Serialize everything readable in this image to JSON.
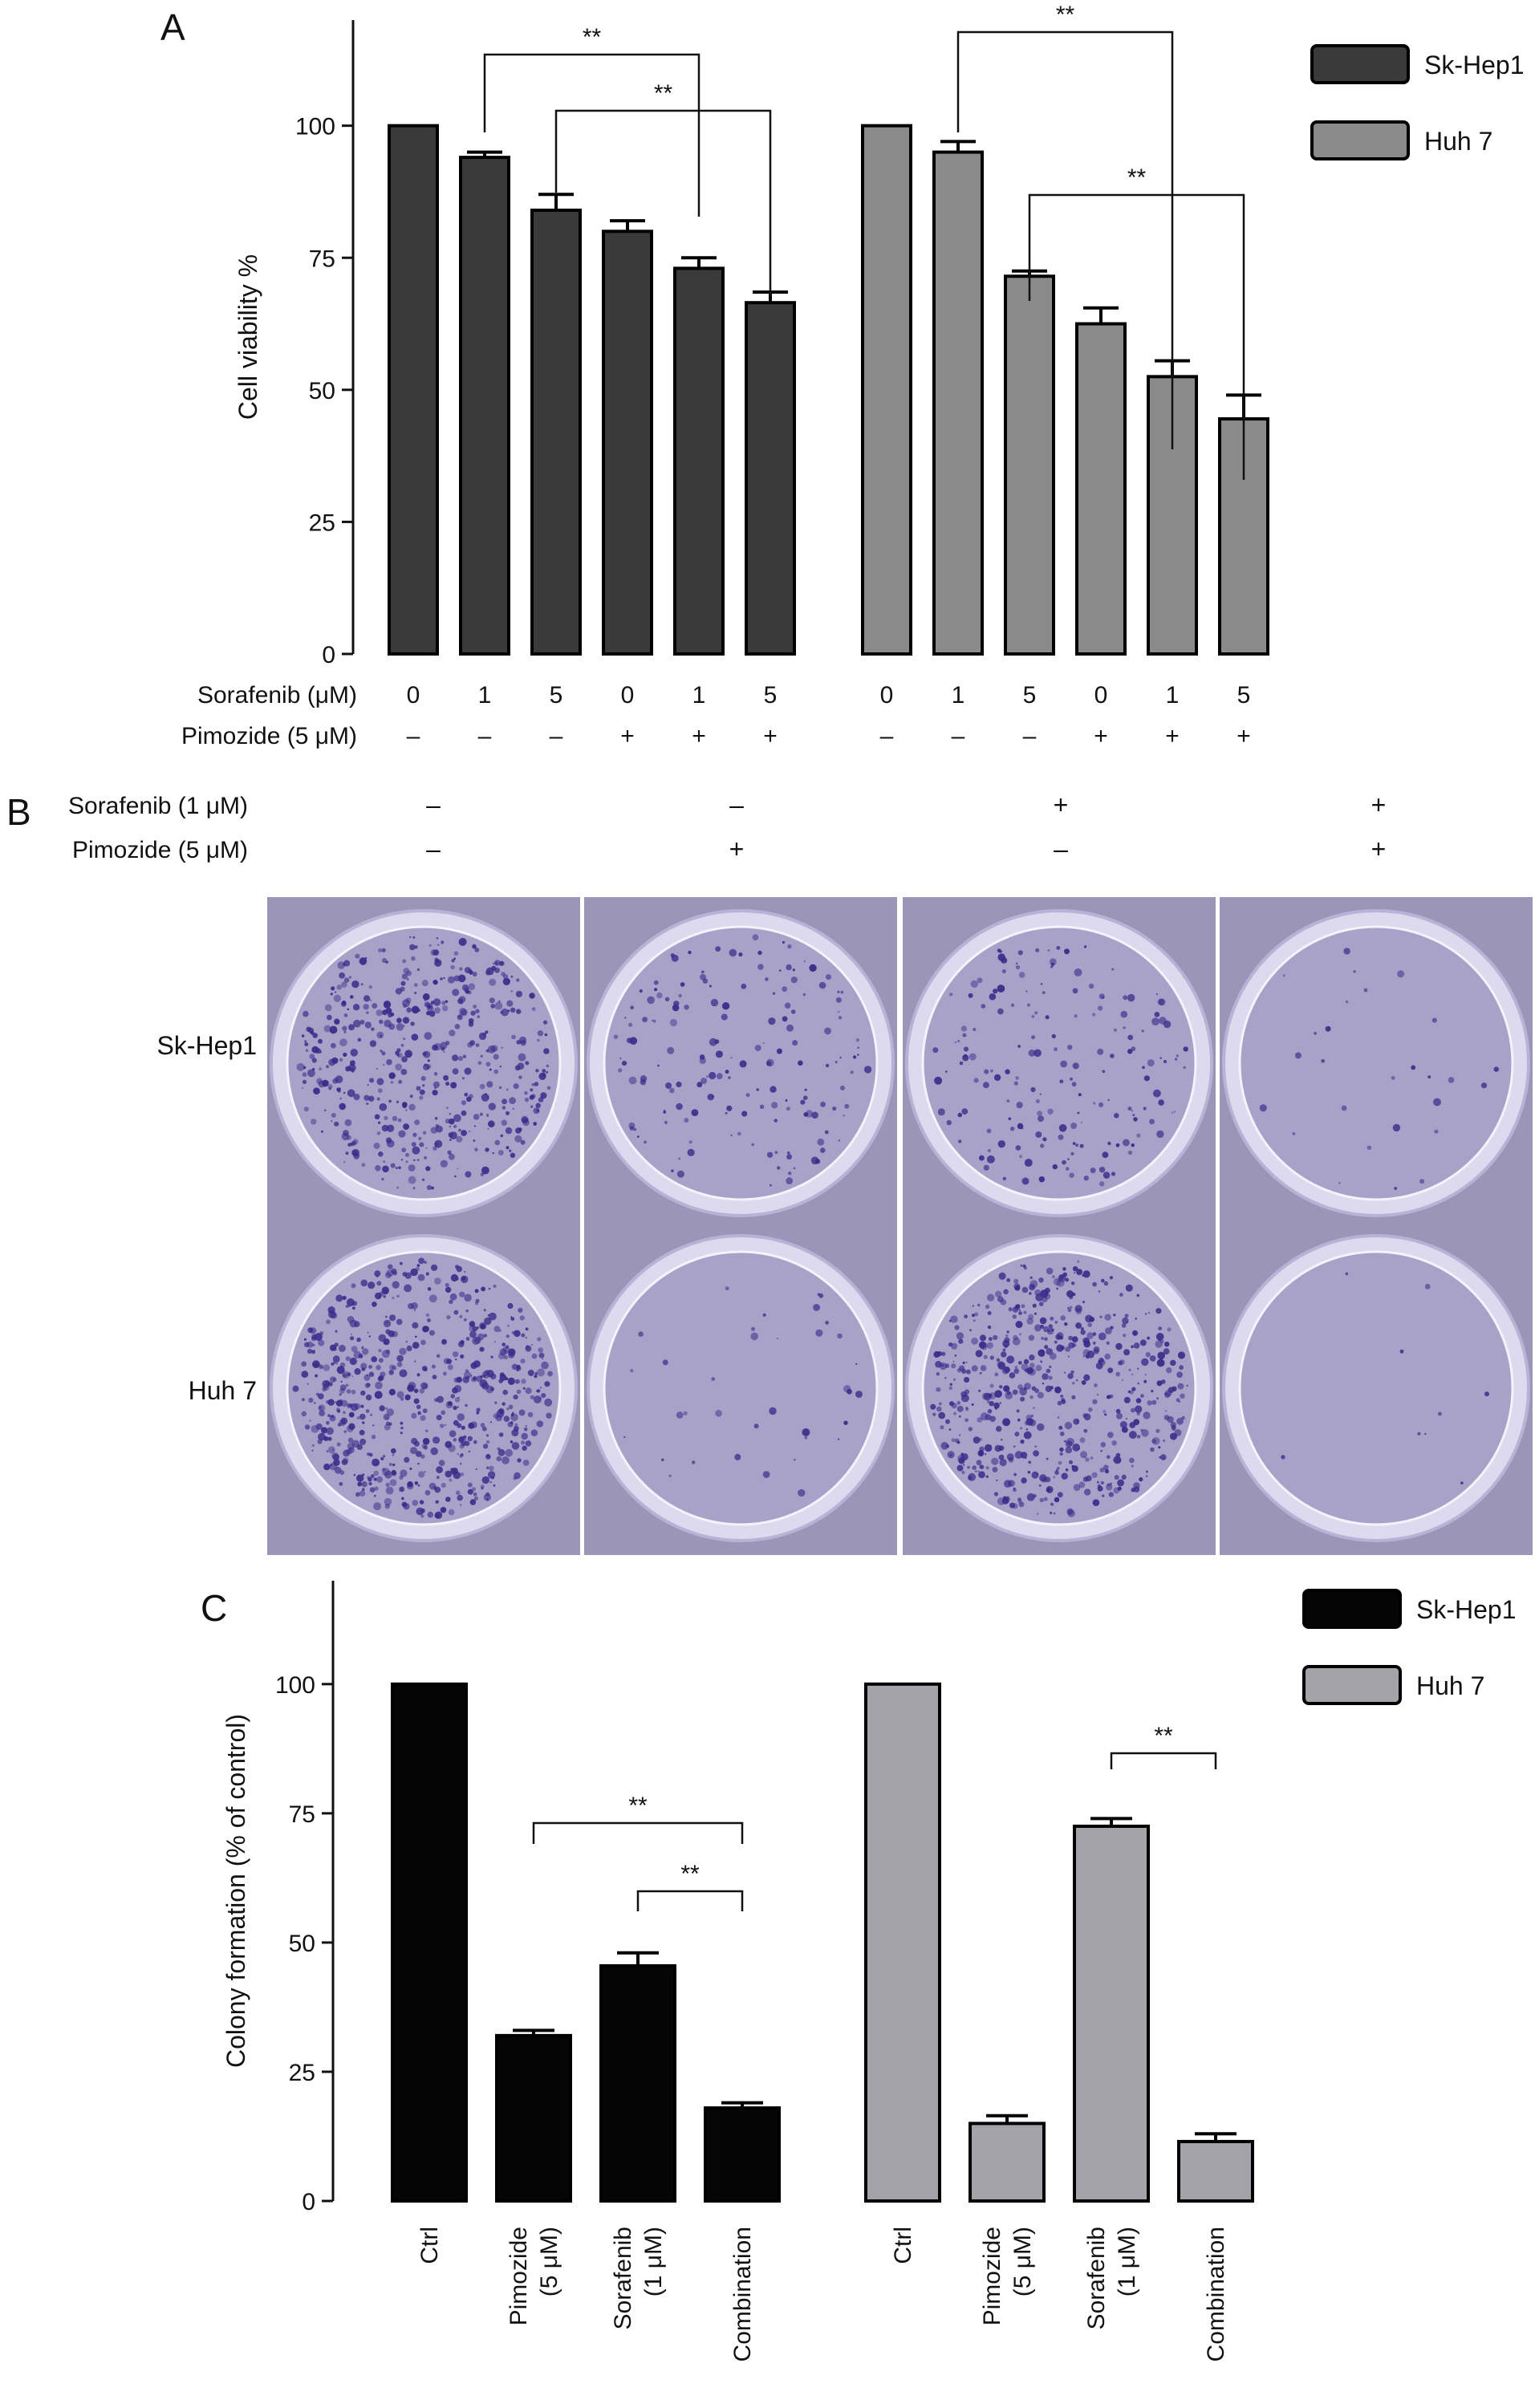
{
  "chart_data": [
    {
      "type": "bar",
      "panel": "A",
      "ylabel": "Cell viability %",
      "ylim": [
        0,
        120
      ],
      "yticks": [
        "0",
        "25",
        "50",
        "75",
        "100"
      ],
      "rows": [
        {
          "label": "Sorafenib (μM)",
          "values": [
            "0",
            "1",
            "5",
            "0",
            "1",
            "5",
            "0",
            "1",
            "5",
            "0",
            "1",
            "5"
          ]
        },
        {
          "label": "Pimozide (5 μM)",
          "values": [
            "–",
            "–",
            "–",
            "+",
            "+",
            "+",
            "–",
            "–",
            "–",
            "+",
            "+",
            "+"
          ]
        }
      ],
      "series": [
        {
          "name": "Sk-Hep1",
          "color": "#3a3a3a",
          "values": [
            100,
            94,
            84,
            80,
            73,
            66.5
          ],
          "errors": [
            0,
            1,
            3,
            2,
            2,
            2
          ]
        },
        {
          "name": "Huh 7",
          "color": "#8a8a8a",
          "values": [
            100,
            95,
            71.5,
            62.5,
            52.5,
            44.5
          ],
          "errors": [
            0,
            2,
            1,
            3,
            3,
            4.5
          ]
        }
      ],
      "annotations": [
        {
          "text": "**",
          "from": [
            0,
            1
          ],
          "to": [
            0,
            4
          ]
        },
        {
          "text": "**",
          "from": [
            0,
            2
          ],
          "to": [
            0,
            5
          ]
        },
        {
          "text": "**",
          "from": [
            1,
            1
          ],
          "to": [
            1,
            4
          ]
        },
        {
          "text": "**",
          "from": [
            1,
            2
          ],
          "to": [
            1,
            5
          ]
        }
      ],
      "legend": "top-right"
    },
    {
      "type": "bar",
      "panel": "C",
      "ylabel": "Colony formation (% of control)",
      "ylim": [
        0,
        120
      ],
      "yticks": [
        "0",
        "25",
        "50",
        "75",
        "100"
      ],
      "categories": [
        [
          "Ctrl"
        ],
        [
          "Pimozide",
          "(5 μM)"
        ],
        [
          "Sorafenib",
          "(1 μM)"
        ],
        [
          "Combination"
        ]
      ],
      "series": [
        {
          "name": "Sk-Hep1",
          "color": "#050505",
          "values": [
            100,
            32,
            45.5,
            18
          ],
          "errors": [
            0,
            1,
            2.5,
            1
          ]
        },
        {
          "name": "Huh 7",
          "color": "#a3a3a9",
          "values": [
            100,
            15,
            72.5,
            11.5
          ],
          "errors": [
            0,
            1.5,
            1.5,
            1.5
          ]
        }
      ],
      "annotations": [
        {
          "text": "**",
          "from": [
            0,
            1
          ],
          "to": [
            0,
            3
          ]
        },
        {
          "text": "**",
          "from": [
            0,
            2
          ],
          "to": [
            0,
            3
          ]
        },
        {
          "text": "**",
          "from": [
            1,
            2
          ],
          "to": [
            1,
            3
          ]
        }
      ],
      "legend": "top-right"
    }
  ],
  "panelA": {
    "letter": "A"
  },
  "panelB": {
    "letter": "B",
    "conditions": [
      {
        "label": "Sorafenib (1 μM)",
        "signs": [
          "–",
          "–",
          "+",
          "+"
        ]
      },
      {
        "label": "Pimozide (5 μM)",
        "signs": [
          "–",
          "+",
          "–",
          "+"
        ]
      }
    ],
    "rows": [
      {
        "label": "Sk-Hep1",
        "densities": [
          0.55,
          0.18,
          0.2,
          0.03
        ]
      },
      {
        "label": "Huh 7",
        "densities": [
          0.7,
          0.04,
          0.65,
          0.01
        ]
      }
    ],
    "well_color": "#7d74aa",
    "colony_color": "#3a2a8a"
  },
  "panelC": {
    "letter": "C"
  }
}
